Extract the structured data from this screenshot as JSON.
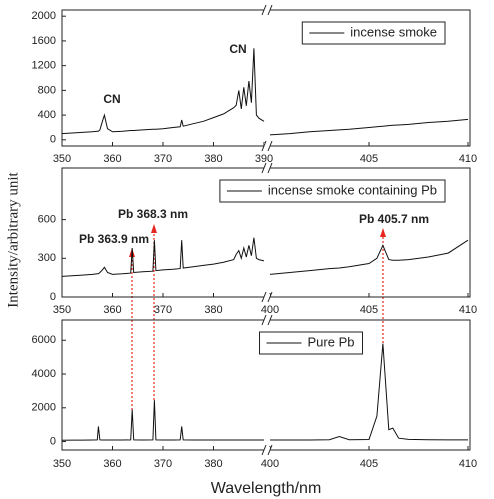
{
  "chart_data": [
    {
      "type": "line",
      "xlim": [
        350,
        410
      ],
      "xbreak": [
        390,
        400
      ],
      "ylim": [
        -100,
        2100
      ],
      "xticks": [
        350,
        360,
        370,
        380,
        390,
        405,
        410
      ],
      "yticks": [
        0,
        400,
        800,
        1200,
        1600,
        2000
      ],
      "legend": "upper right",
      "annotations": [
        {
          "text": "CN",
          "color": "#e8251f"
        },
        {
          "text": "CN",
          "color": "#e8251f"
        }
      ],
      "x": [
        350,
        352,
        354,
        356,
        357,
        357.2,
        357.5,
        358,
        358.4,
        359,
        360,
        362,
        363.6,
        363.9,
        364.2,
        366,
        368,
        368.3,
        368.6,
        370,
        372,
        373.4,
        373.7,
        374,
        376,
        378,
        380,
        382,
        384,
        384.5,
        385,
        385.5,
        386,
        386.5,
        387,
        387.5,
        388,
        388.5,
        389,
        390,
        395,
        400,
        401,
        402,
        403,
        403.5,
        404,
        405,
        405.4,
        405.7,
        406,
        406.2,
        406.5,
        407,
        408,
        409,
        410
      ],
      "series": [
        {
          "name": "incense smoke",
          "color": "#111111",
          "values": [
            100,
            110,
            120,
            130,
            140,
            140,
            160,
            300,
            400,
            180,
            130,
            140,
            150,
            150,
            150,
            160,
            170,
            170,
            170,
            180,
            200,
            210,
            320,
            220,
            260,
            300,
            360,
            420,
            520,
            560,
            800,
            500,
            850,
            550,
            950,
            600,
            1480,
            400,
            350,
            300,
            null,
            80,
            100,
            130,
            150,
            160,
            170,
            200,
            210,
            220,
            230,
            235,
            240,
            250,
            280,
            300,
            330
          ]
        }
      ]
    },
    {
      "type": "line",
      "xlim": [
        350,
        410
      ],
      "xbreak": [
        390,
        400
      ],
      "ylim": [
        0,
        1000
      ],
      "xticks": [
        350,
        360,
        370,
        380,
        400,
        405,
        410
      ],
      "yticks": [
        0,
        300,
        600
      ],
      "legend": "upper right",
      "ylabel": "Intensity/arbitrary unit",
      "annotations": [
        {
          "text": "Pb 368.3 nm",
          "color": "#000000"
        },
        {
          "text": "Pb 363.9 nm",
          "color": "#000000"
        },
        {
          "text": "Pb 405.7 nm",
          "color": "#000000"
        }
      ],
      "x": [
        350,
        352,
        354,
        356,
        357,
        357.2,
        357.5,
        358,
        358.4,
        359,
        360,
        362,
        363.6,
        363.9,
        364.2,
        366,
        368,
        368.3,
        368.6,
        370,
        372,
        373.4,
        373.7,
        374,
        376,
        378,
        380,
        382,
        384,
        384.5,
        385,
        385.5,
        386,
        386.5,
        387,
        387.5,
        388,
        388.5,
        389,
        390,
        395,
        400,
        401,
        402,
        403,
        403.5,
        404,
        405,
        405.4,
        405.7,
        406,
        406.2,
        406.5,
        407,
        408,
        409,
        410
      ],
      "series": [
        {
          "name": "incense smoke containing  Pb",
          "color": "#111111",
          "values": [
            160,
            165,
            170,
            175,
            180,
            180,
            190,
            210,
            230,
            190,
            175,
            180,
            185,
            380,
            190,
            195,
            200,
            440,
            205,
            210,
            215,
            220,
            440,
            225,
            235,
            245,
            255,
            270,
            290,
            330,
            360,
            300,
            380,
            310,
            400,
            320,
            460,
            300,
            290,
            280,
            null,
            175,
            190,
            205,
            220,
            225,
            235,
            260,
            300,
            400,
            290,
            285,
            285,
            290,
            310,
            340,
            440
          ]
        }
      ]
    },
    {
      "type": "line",
      "xlim": [
        350,
        410
      ],
      "xbreak": [
        390,
        400
      ],
      "ylim": [
        -500,
        7200
      ],
      "xticks": [
        350,
        360,
        370,
        380,
        400,
        405,
        410
      ],
      "yticks": [
        0,
        2000,
        4000,
        6000
      ],
      "legend": "upper center",
      "xlabel": "Wavelength/nm",
      "x": [
        350,
        352,
        354,
        356,
        357,
        357.2,
        357.5,
        358,
        358.4,
        359,
        360,
        362,
        363.6,
        363.9,
        364.2,
        366,
        368,
        368.3,
        368.6,
        370,
        372,
        373.4,
        373.7,
        374,
        376,
        378,
        380,
        382,
        384,
        384.5,
        385,
        385.5,
        386,
        386.5,
        387,
        387.5,
        388,
        388.5,
        389,
        390,
        395,
        400,
        401,
        402,
        403,
        403.5,
        404,
        405,
        405.4,
        405.7,
        406,
        406.2,
        406.5,
        407,
        408,
        409,
        410
      ],
      "series": [
        {
          "name": "Pure  Pb",
          "color": "#111111",
          "values": [
            80,
            85,
            85,
            90,
            100,
            900,
            100,
            95,
            95,
            90,
            90,
            95,
            100,
            1900,
            100,
            95,
            100,
            2450,
            100,
            95,
            95,
            100,
            900,
            100,
            95,
            95,
            90,
            90,
            90,
            90,
            90,
            90,
            90,
            90,
            90,
            90,
            90,
            90,
            90,
            90,
            null,
            90,
            95,
            95,
            110,
            300,
            110,
            120,
            1500,
            5800,
            700,
            800,
            200,
            130,
            110,
            100,
            100
          ]
        }
      ]
    }
  ]
}
